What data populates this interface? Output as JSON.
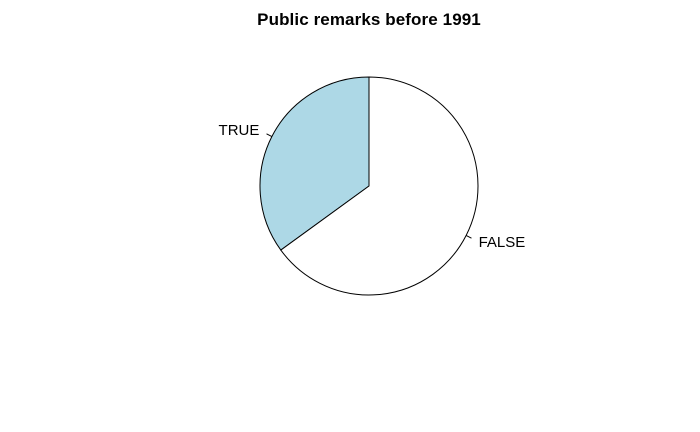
{
  "chart_data": {
    "type": "pie",
    "title": "Public remarks before 1991",
    "slices": [
      {
        "label": "TRUE",
        "value": 0.35,
        "color": "#ADD8E6"
      },
      {
        "label": "FALSE",
        "value": 0.65,
        "color": "#FFFFFF"
      }
    ],
    "start_angle_deg": 90,
    "direction": "counterclockwise",
    "border_color": "#000000"
  }
}
